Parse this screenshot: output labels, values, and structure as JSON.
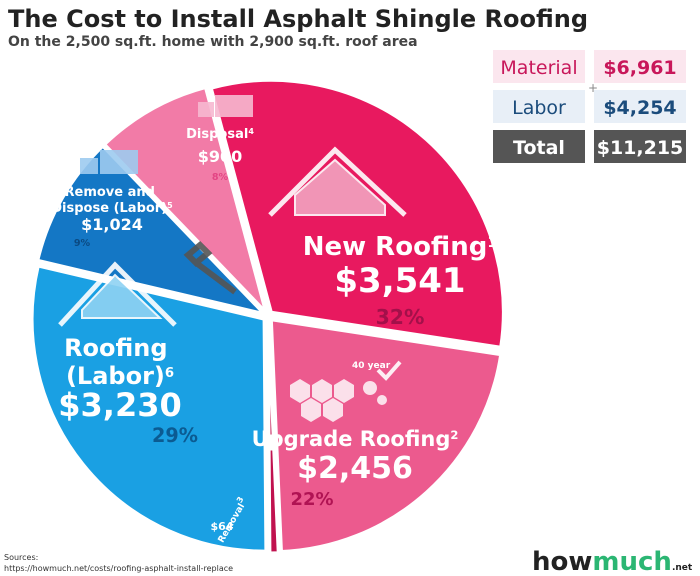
{
  "chart_data": {
    "type": "pie",
    "title": "The Cost to Install Asphalt Shingle Roofing",
    "subtitle": "On the 2,500 sq.ft. home with 2,900 sq.ft. roof area",
    "categories": [
      "New Roofing",
      "Upgrade Roofing",
      "Removal",
      "Roofing (Labor)",
      "Remove and Dispose (Labor)",
      "Disposal"
    ],
    "notes": [
      "1",
      "2",
      "3",
      "6",
      "5",
      "4"
    ],
    "values": [
      3541,
      2456,
      64,
      3230,
      1024,
      900
    ],
    "value_labels": [
      "$3,541",
      "$2,456",
      "$64",
      "$3,230",
      "$1,024",
      "$900"
    ],
    "share_labels": [
      "32%",
      "22%",
      null,
      "29%",
      "9%",
      "8%"
    ],
    "colors": [
      "#e8195f",
      "#ec5a8e",
      "#c0124f",
      "#1aa0e3",
      "#1477c5",
      "#f27ba7"
    ],
    "badge": "40 year",
    "summary": [
      {
        "label": "Material",
        "value": 6961,
        "value_label": "$6,961"
      },
      {
        "label": "Labor",
        "value": 4254,
        "value_label": "$4,254"
      },
      {
        "label": "Total",
        "value": 11215,
        "value_label": "$11,215"
      }
    ],
    "sources_heading": "Sources:",
    "source": "https://howmuch.net/costs/roofing-asphalt-install-replace",
    "brand": [
      "how",
      "much",
      ".net"
    ]
  }
}
